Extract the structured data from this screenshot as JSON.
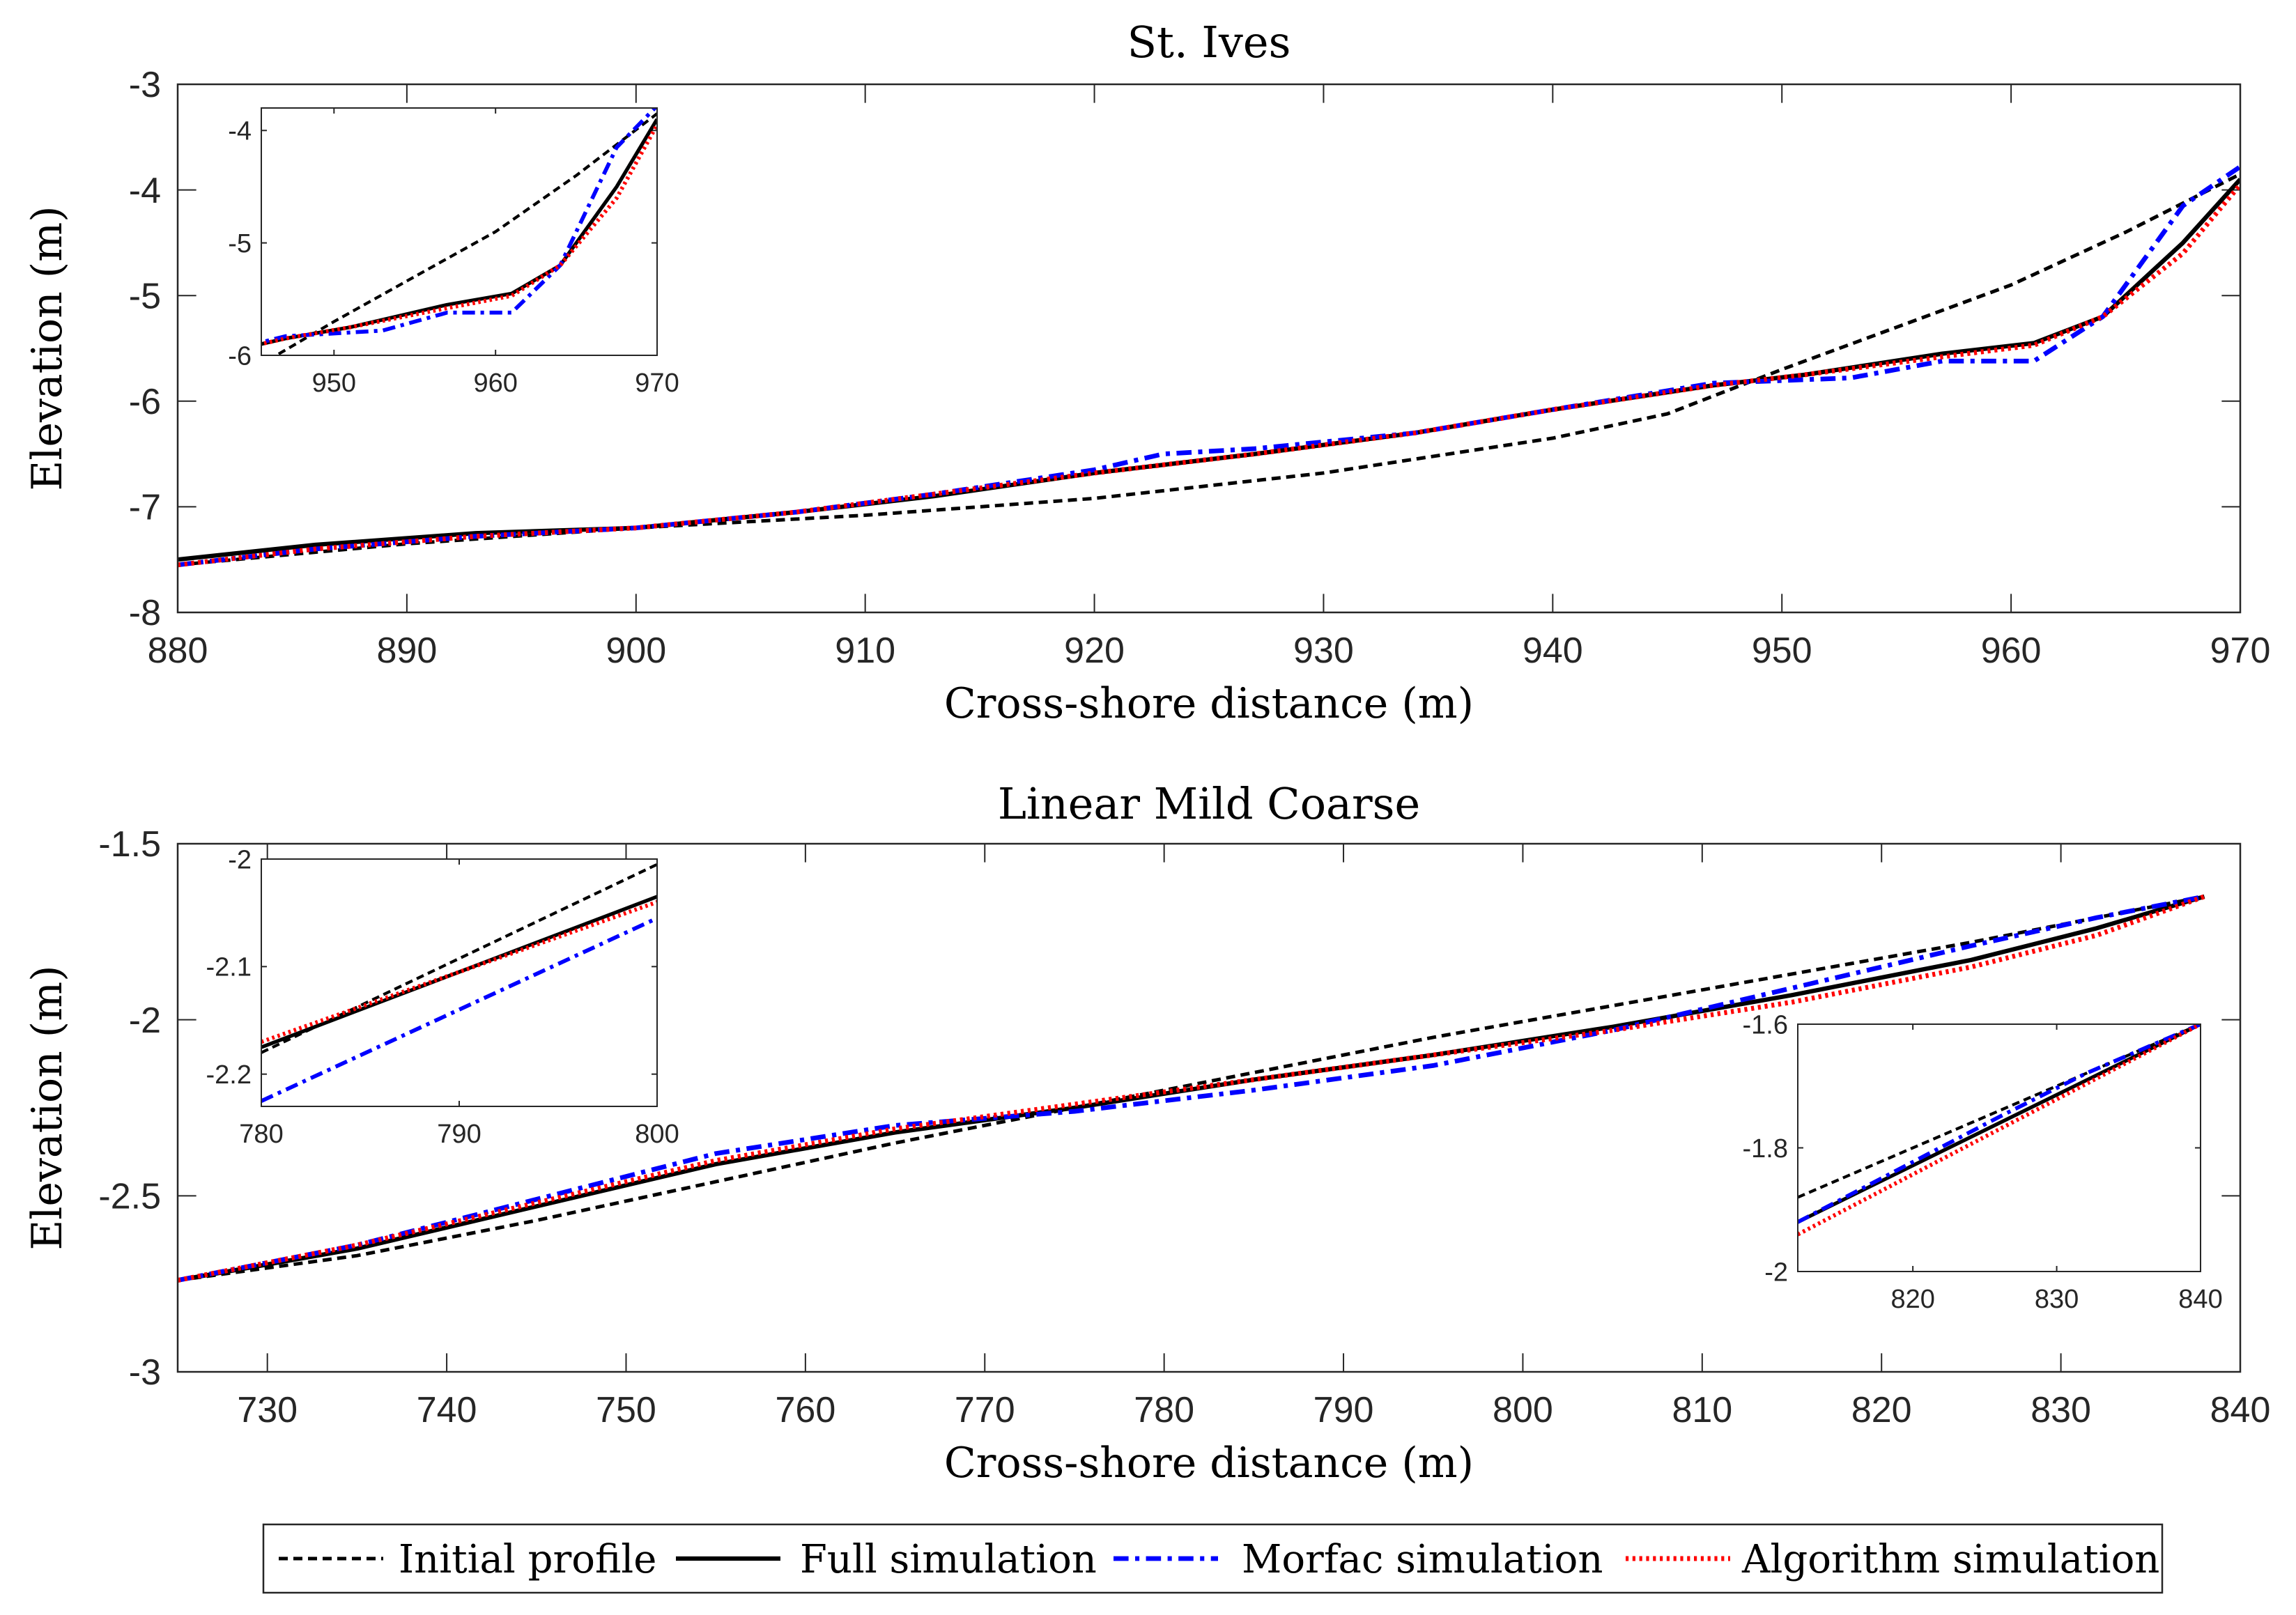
{
  "figure": {
    "legend": {
      "placement": "bottom-center",
      "entries": [
        {
          "label": "Initial profile",
          "color": "#000000",
          "style": "dashed"
        },
        {
          "label": "Full simulation",
          "color": "#000000",
          "style": "solid"
        },
        {
          "label": "Morfac simulation",
          "color": "#0000ff",
          "style": "dashdot"
        },
        {
          "label": "Algorithm simulation",
          "color": "#ff0000",
          "style": "dotted"
        }
      ]
    }
  },
  "chart_data": [
    {
      "type": "line",
      "title": "St. Ives",
      "xlabel": "Cross-shore distance (m)",
      "ylabel": "Elevation (m)",
      "xlim": [
        880,
        970
      ],
      "ylim": [
        -8,
        -3
      ],
      "xticks": [
        880,
        890,
        900,
        910,
        920,
        930,
        940,
        950,
        960,
        970
      ],
      "yticks": [
        -8,
        -7,
        -6,
        -5,
        -4,
        -3
      ],
      "grid": false,
      "series": [
        {
          "name": "Initial profile",
          "x": [
            880,
            890,
            900,
            910,
            920,
            930,
            940,
            945,
            950,
            955,
            960,
            965,
            970
          ],
          "y": [
            -7.55,
            -7.35,
            -7.2,
            -7.08,
            -6.92,
            -6.68,
            -6.35,
            -6.12,
            -5.7,
            -5.3,
            -4.9,
            -4.4,
            -3.85
          ]
        },
        {
          "name": "Full simulation",
          "x": [
            880,
            886,
            893,
            900,
            907,
            913,
            920,
            927,
            934,
            940,
            947,
            951,
            957,
            961,
            964,
            967.5,
            970
          ],
          "y": [
            -7.5,
            -7.36,
            -7.25,
            -7.2,
            -7.05,
            -6.9,
            -6.68,
            -6.5,
            -6.3,
            -6.08,
            -5.85,
            -5.75,
            -5.55,
            -5.45,
            -5.2,
            -4.5,
            -3.9
          ]
        },
        {
          "name": "Morfac simulation",
          "x": [
            880,
            886,
            893,
            900,
            907,
            913,
            920,
            923,
            927,
            934,
            940,
            947,
            953,
            957,
            961,
            964,
            967.5,
            970
          ],
          "y": [
            -7.55,
            -7.4,
            -7.28,
            -7.2,
            -7.05,
            -6.88,
            -6.65,
            -6.5,
            -6.45,
            -6.3,
            -6.08,
            -5.83,
            -5.78,
            -5.62,
            -5.62,
            -5.2,
            -4.15,
            -3.78
          ]
        },
        {
          "name": "Algorithm simulation",
          "x": [
            880,
            886,
            893,
            900,
            907,
            913,
            920,
            927,
            934,
            940,
            947,
            951,
            957,
            961,
            964,
            967.5,
            970
          ],
          "y": [
            -7.55,
            -7.4,
            -7.28,
            -7.2,
            -7.05,
            -6.88,
            -6.68,
            -6.5,
            -6.3,
            -6.08,
            -5.85,
            -5.75,
            -5.58,
            -5.47,
            -5.2,
            -4.6,
            -3.95
          ]
        }
      ],
      "inset": {
        "xlim": [
          945.5,
          970
        ],
        "ylim": [
          -6,
          -3.8
        ],
        "xticks": [
          950,
          960,
          970
        ],
        "yticks": [
          -6,
          -5,
          -4
        ]
      }
    },
    {
      "type": "line",
      "title": "Linear Mild Coarse",
      "xlabel": "Cross-shore distance (m)",
      "ylabel": "Elevation (m)",
      "xlim": [
        725,
        840
      ],
      "ylim": [
        -3,
        -1.5
      ],
      "xticks": [
        730,
        740,
        750,
        760,
        770,
        780,
        790,
        800,
        810,
        820,
        830,
        840
      ],
      "yticks": [
        -3,
        -2.5,
        -2,
        -1.5
      ],
      "grid": false,
      "series": [
        {
          "name": "Initial profile",
          "x": [
            725,
            735,
            745,
            755,
            765,
            775,
            785,
            795,
            805,
            815,
            825,
            832,
            838
          ],
          "y": [
            -2.74,
            -2.67,
            -2.57,
            -2.46,
            -2.35,
            -2.25,
            -2.15,
            -2.05,
            -1.96,
            -1.87,
            -1.78,
            -1.71,
            -1.65
          ]
        },
        {
          "name": "Full simulation",
          "x": [
            725,
            735,
            745,
            755,
            765,
            775,
            785,
            795,
            805,
            815,
            825,
            832,
            838
          ],
          "y": [
            -2.74,
            -2.65,
            -2.53,
            -2.41,
            -2.32,
            -2.25,
            -2.17,
            -2.1,
            -2.02,
            -1.93,
            -1.83,
            -1.74,
            -1.65
          ]
        },
        {
          "name": "Morfac simulation",
          "x": [
            725,
            735,
            745,
            755,
            765,
            775,
            785,
            795,
            805,
            815,
            825,
            832,
            838
          ],
          "y": [
            -2.74,
            -2.64,
            -2.51,
            -2.38,
            -2.3,
            -2.26,
            -2.2,
            -2.13,
            -2.03,
            -1.91,
            -1.79,
            -1.71,
            -1.65
          ]
        },
        {
          "name": "Algorithm simulation",
          "x": [
            725,
            735,
            745,
            755,
            765,
            775,
            785,
            795,
            805,
            815,
            825,
            832,
            838
          ],
          "y": [
            -2.74,
            -2.64,
            -2.52,
            -2.4,
            -2.31,
            -2.24,
            -2.17,
            -2.1,
            -2.03,
            -1.95,
            -1.85,
            -1.76,
            -1.65
          ]
        }
      ],
      "insets": [
        {
          "xlim": [
            780,
            800
          ],
          "ylim": [
            -2.23,
            -2
          ],
          "xticks": [
            780,
            790,
            800
          ],
          "yticks": [
            -2.2,
            -2.1,
            -2
          ],
          "series": [
            {
              "name": "Initial profile",
              "x": [
                780,
                800
              ],
              "y": [
                -2.18,
                -2.005
              ]
            },
            {
              "name": "Full simulation",
              "x": [
                780,
                800
              ],
              "y": [
                -2.175,
                -2.035
              ]
            },
            {
              "name": "Morfac simulation",
              "x": [
                780,
                800
              ],
              "y": [
                -2.225,
                -2.055
              ]
            },
            {
              "name": "Algorithm simulation",
              "x": [
                780,
                800
              ],
              "y": [
                -2.17,
                -2.04
              ]
            }
          ]
        },
        {
          "xlim": [
            812,
            840
          ],
          "ylim": [
            -2,
            -1.6
          ],
          "xticks": [
            820,
            830,
            840
          ],
          "yticks": [
            -2,
            -1.8,
            -1.6
          ],
          "series": [
            {
              "name": "Initial profile",
              "x": [
                812,
                840
              ],
              "y": [
                -1.88,
                -1.6
              ]
            },
            {
              "name": "Full simulation",
              "x": [
                812,
                840
              ],
              "y": [
                -1.92,
                -1.6
              ]
            },
            {
              "name": "Morfac simulation",
              "x": [
                812,
                826,
                832,
                840
              ],
              "y": [
                -1.92,
                -1.75,
                -1.68,
                -1.6
              ]
            },
            {
              "name": "Algorithm simulation",
              "x": [
                812,
                840
              ],
              "y": [
                -1.94,
                -1.6
              ]
            }
          ]
        }
      ]
    }
  ]
}
